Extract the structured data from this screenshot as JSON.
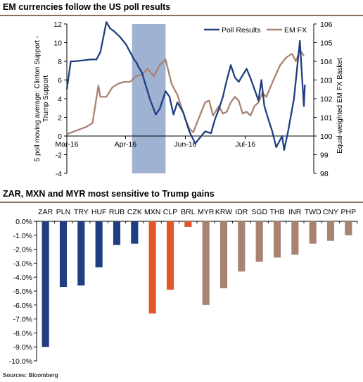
{
  "top_title": "EM currencies follow the US poll results",
  "bottom_title": "ZAR, MXN and MYR most sensitive to Trump gains",
  "source": "Sources: Bloomberg",
  "colors": {
    "navy": "#1f3f80",
    "brown": "#a98271",
    "orange": "#e2562a",
    "shade": "#9fb2d2",
    "rule": "#8a6e60"
  },
  "chart_data": [
    {
      "type": "line",
      "title": "EM currencies follow the US poll results",
      "ylabel_left": "5 poll moving average: Clinton Support - Trump Support",
      "ylabel_right": "Equal-weighted EM FX Basket",
      "ylim_left": [
        -4,
        12
      ],
      "ylim_right": [
        98,
        106
      ],
      "yticks_left": [
        "-4",
        "-2",
        "0",
        "2",
        "4",
        "6",
        "8",
        "10",
        "12"
      ],
      "yticks_right": [
        "98",
        "99",
        "100",
        "101",
        "102",
        "103",
        "104",
        "105",
        "106"
      ],
      "xtick_labels": [
        "Mar-16",
        "Apr-16",
        "Jun-16",
        "Jul-16"
      ],
      "xtick_positions": [
        0,
        0.297,
        0.6,
        0.904
      ],
      "shaded_region": [
        0.33,
        0.5
      ],
      "legend": [
        "Poll Results",
        "EM FX"
      ],
      "legend_position": "top-right",
      "grid": false,
      "series": [
        {
          "name": "Poll Results",
          "axis": "left",
          "x": [
            0,
            0.02,
            0.04,
            0.12,
            0.15,
            0.17,
            0.2,
            0.22,
            0.24,
            0.27,
            0.3,
            0.32,
            0.34,
            0.355,
            0.36,
            0.38,
            0.42,
            0.45,
            0.47,
            0.5,
            0.52,
            0.54,
            0.56,
            0.59,
            0.6,
            0.62,
            0.65,
            0.7,
            0.73,
            0.75,
            0.77,
            0.79,
            0.81,
            0.83,
            0.85,
            0.87,
            0.89,
            0.91,
            0.93,
            0.95,
            0.97,
            0.985,
            1.0,
            1.02,
            1.04,
            1.06,
            1.09,
            1.1,
            1.12,
            1.15,
            1.18,
            1.19,
            1.2,
            1.205
          ],
          "values": [
            5,
            8,
            8,
            8.2,
            8.2,
            9,
            12.2,
            11.5,
            11.2,
            10.6,
            9.8,
            9,
            8.2,
            7.8,
            7.5,
            6.8,
            4,
            2.3,
            2.9,
            4.8,
            4.2,
            2.3,
            3.6,
            2.5,
            1.8,
            0.5,
            -0.8,
            0.5,
            0.3,
            1.8,
            2.9,
            4.2,
            6,
            7.6,
            6.3,
            5.8,
            6.5,
            7.2,
            6.2,
            5,
            3.8,
            6,
            3.2,
            1.8,
            0.5,
            -1.2,
            0,
            -1.5,
            0.5,
            4,
            10.2,
            6.5,
            3.2,
            5.5
          ]
        },
        {
          "name": "EM FX",
          "axis": "right",
          "x": [
            0,
            0.1,
            0.13,
            0.16,
            0.17,
            0.18,
            0.2,
            0.23,
            0.26,
            0.29,
            0.32,
            0.35,
            0.38,
            0.41,
            0.44,
            0.47,
            0.5,
            0.53,
            0.56,
            0.6,
            0.62,
            0.64,
            0.67,
            0.7,
            0.72,
            0.74,
            0.77,
            0.79,
            0.81,
            0.83,
            0.85,
            0.87,
            0.89,
            0.91,
            0.93,
            0.95,
            0.97,
            0.99,
            1.01,
            1.03,
            1.05,
            1.08,
            1.11,
            1.14,
            1.16,
            1.18,
            1.2
          ],
          "values": [
            100.1,
            100.5,
            100.7,
            102.7,
            102.1,
            102.1,
            102.1,
            102.6,
            102.8,
            102.9,
            102.9,
            103.2,
            103.3,
            103.6,
            103.2,
            103.8,
            104.1,
            102.8,
            102.2,
            100.9,
            100.4,
            100.2,
            101.0,
            101.8,
            101.9,
            101.1,
            101.6,
            101.2,
            101.3,
            101.8,
            102.1,
            101.9,
            101.2,
            101.3,
            101.1,
            101.6,
            101.8,
            102.3,
            102.1,
            102.6,
            103.1,
            103.8,
            104.2,
            104.4,
            104.0,
            104.6,
            104.3
          ]
        }
      ]
    },
    {
      "type": "bar",
      "title": "ZAR, MXN and MYR most sensitive to Trump gains",
      "categories": [
        "ZAR",
        "PLN",
        "TRY",
        "HUF",
        "RUB",
        "CZK",
        "MXN",
        "CLP",
        "BRL",
        "MYR",
        "KRW",
        "IDR",
        "SGD",
        "THB",
        "INR",
        "TWD",
        "CNY",
        "PHP"
      ],
      "values": [
        -9.0,
        -4.7,
        -4.6,
        -3.3,
        -1.7,
        -1.6,
        -6.6,
        -4.9,
        -0.4,
        -6.0,
        -4.8,
        -3.6,
        -2.9,
        -2.6,
        -2.4,
        -1.6,
        -1.4,
        -1.0
      ],
      "bar_colors": [
        "navy",
        "navy",
        "navy",
        "navy",
        "navy",
        "navy",
        "orange",
        "orange",
        "orange",
        "brown",
        "brown",
        "brown",
        "brown",
        "brown",
        "brown",
        "brown",
        "brown",
        "brown"
      ],
      "ylim": [
        -10.0,
        0.0
      ],
      "yticks": [
        "0.0%",
        "-1.0%",
        "-2.0%",
        "-3.0%",
        "-4.0%",
        "-5.0%",
        "-6.0%",
        "-7.0%",
        "-8.0%",
        "-9.0%",
        "-10.0%"
      ],
      "grid": false
    }
  ]
}
